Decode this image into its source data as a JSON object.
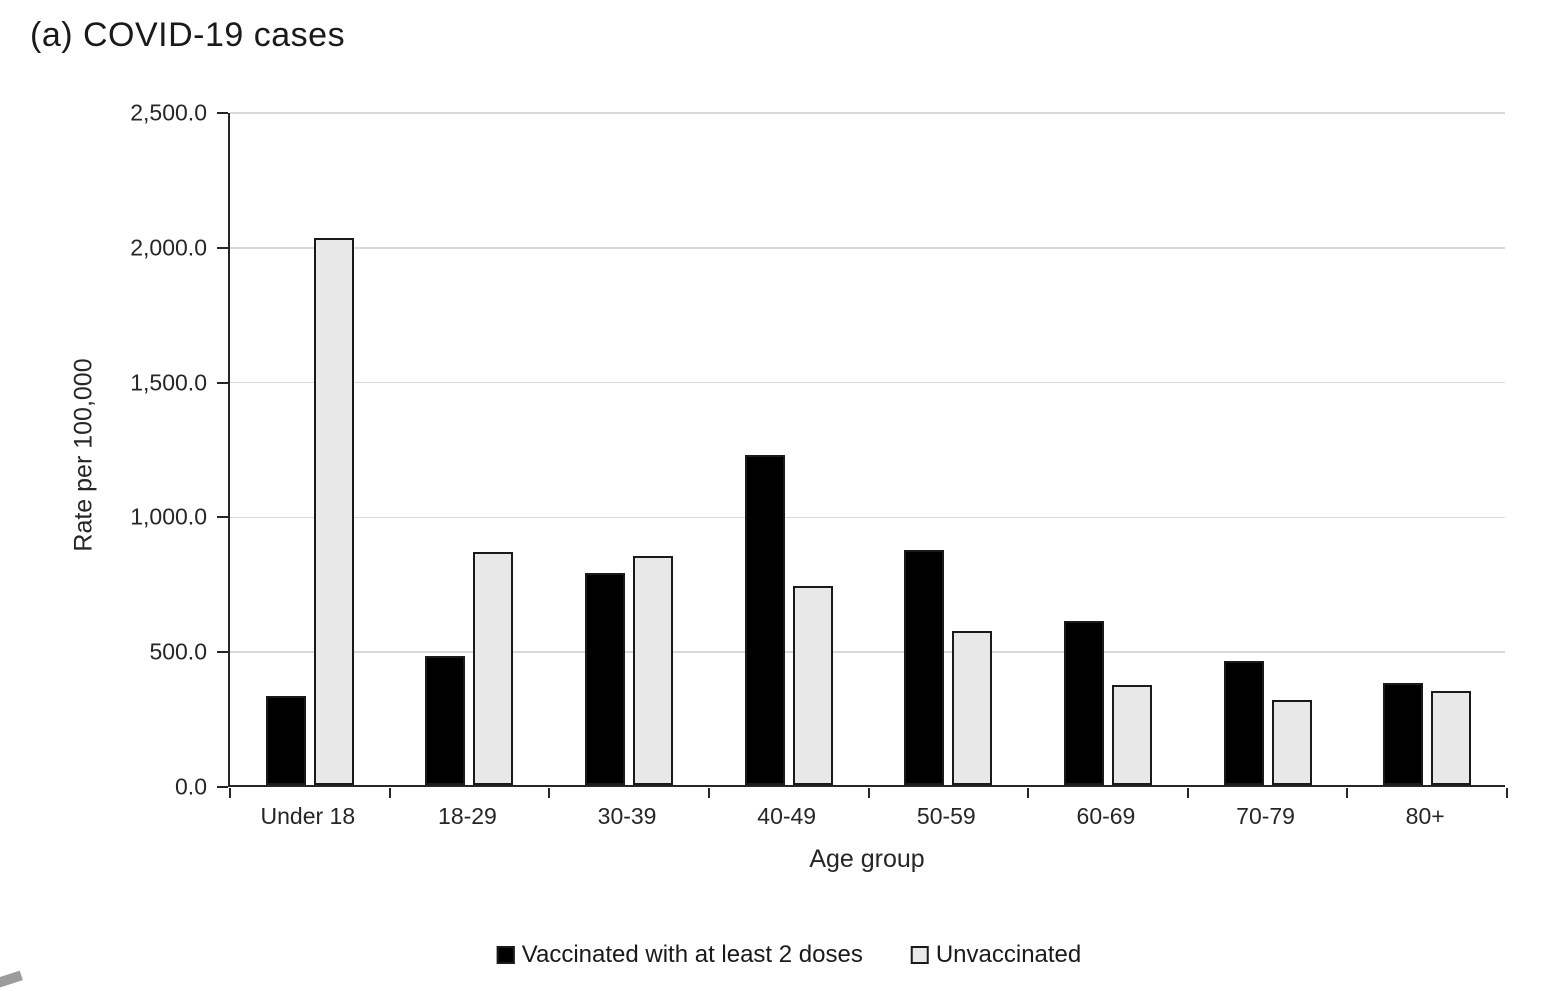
{
  "chart": {
    "title": "(a) COVID-19 cases"
  },
  "chart_data": {
    "type": "bar",
    "title": "(a) COVID-19 cases",
    "xlabel": "Age group",
    "ylabel": "Rate per 100,000",
    "categories": [
      "Under 18",
      "18-29",
      "30-39",
      "40-49",
      "50-59",
      "60-69",
      "70-79",
      "80+"
    ],
    "series": [
      {
        "name": "Vaccinated with at least 2 doses",
        "color": "#000000",
        "border_color": "#1a1a1a",
        "values": [
          330,
          480,
          785,
          1225,
          870,
          610,
          460,
          380
        ]
      },
      {
        "name": "Unvaccinated",
        "color": "#e8e8e8",
        "border_color": "#1a1a1a",
        "values": [
          2030,
          865,
          850,
          740,
          570,
          370,
          315,
          350
        ]
      }
    ],
    "ylim": [
      0,
      2500
    ],
    "yticks": [
      0,
      500,
      1000,
      1500,
      2000,
      2500
    ],
    "ytick_labels": [
      "0.0",
      "500.0",
      "1,000.0",
      "1,500.0",
      "2,000.0",
      "2,500.0"
    ],
    "grid": "horizontal gridlines on",
    "legend_position": "bottom",
    "colors": {
      "gridline": "#d9d9d9",
      "axis": "#262626",
      "text": "#262626",
      "background": "#ffffff"
    }
  }
}
